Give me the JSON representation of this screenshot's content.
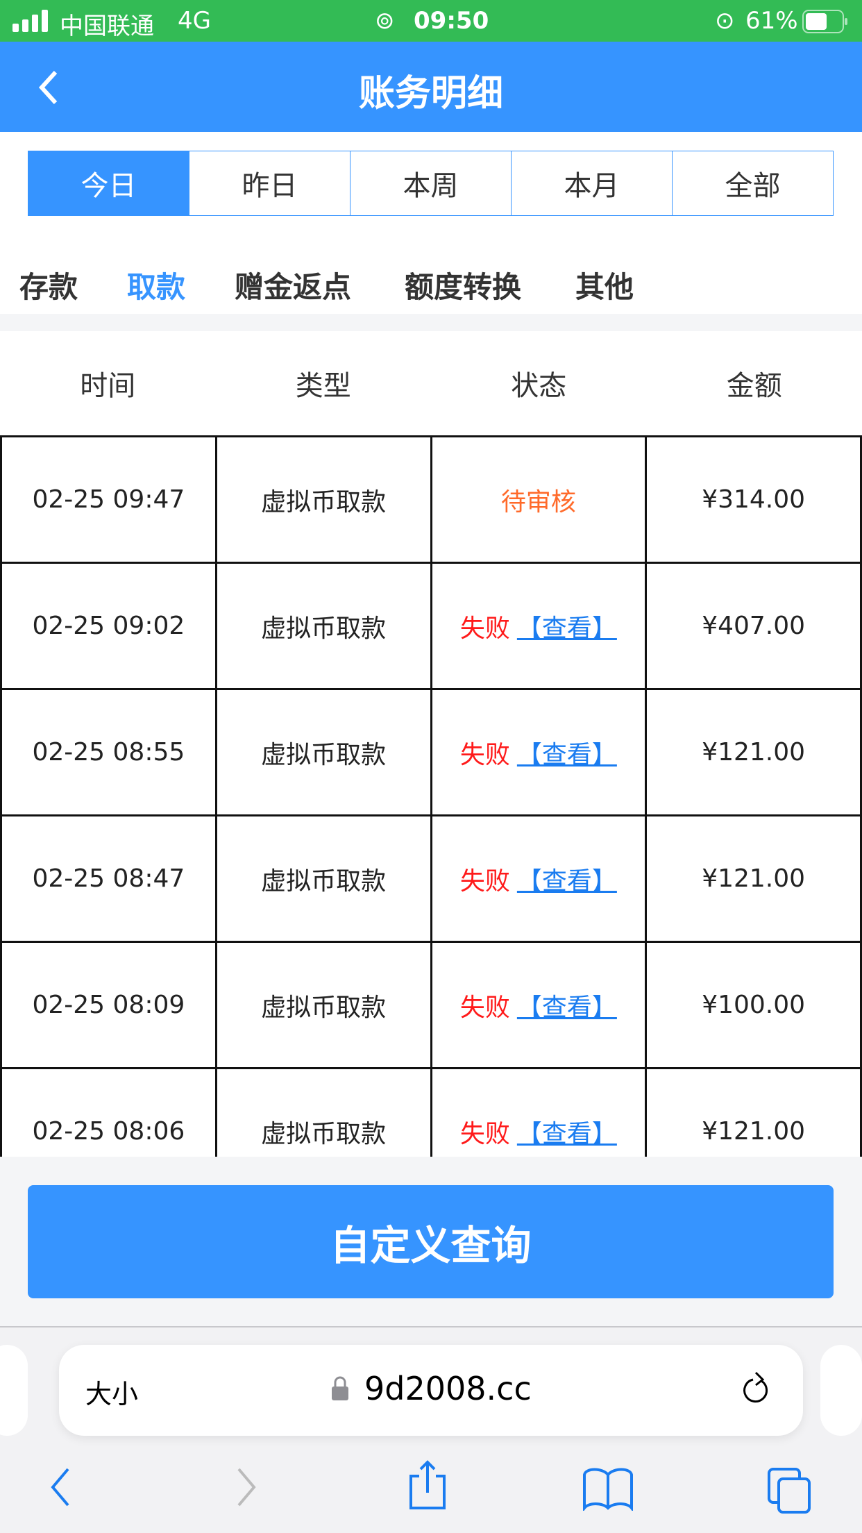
{
  "status": {
    "carrier": "中国联通",
    "network": "4G",
    "time": "09:50",
    "battery": "61%"
  },
  "header": {
    "title": "账务明细"
  },
  "date_tabs": [
    "今日",
    "昨日",
    "本周",
    "本月",
    "全部"
  ],
  "categories": [
    "存款",
    "取款",
    "赠金返点",
    "额度转换",
    "其他"
  ],
  "active_category": "取款",
  "columns": [
    "时间",
    "类型",
    "状态",
    "金额"
  ],
  "rows": [
    {
      "time": "02-25 09:47",
      "type": "虚拟币取款",
      "status": "待审核",
      "link": "",
      "amount": "¥314.00"
    },
    {
      "time": "02-25 09:02",
      "type": "虚拟币取款",
      "status": "失败",
      "link": "【查看】",
      "amount": "¥407.00"
    },
    {
      "time": "02-25 08:55",
      "type": "虚拟币取款",
      "status": "失败",
      "link": "【查看】",
      "amount": "¥121.00"
    },
    {
      "time": "02-25 08:47",
      "type": "虚拟币取款",
      "status": "失败",
      "link": "【查看】",
      "amount": "¥121.00"
    },
    {
      "time": "02-25 08:09",
      "type": "虚拟币取款",
      "status": "失败",
      "link": "【查看】",
      "amount": "¥100.00"
    },
    {
      "time": "02-25 08:06",
      "type": "虚拟币取款",
      "status": "失败",
      "link": "【查看】",
      "amount": "¥121.00"
    }
  ],
  "query_button": "自定义查询",
  "browser": {
    "text_size": "大小",
    "domain": "9d2008.cc"
  },
  "colors": {
    "status_bar": "#33bb55",
    "primary": "#3694ff",
    "pending": "#ff6a2a",
    "fail": "#ff1a1a"
  }
}
